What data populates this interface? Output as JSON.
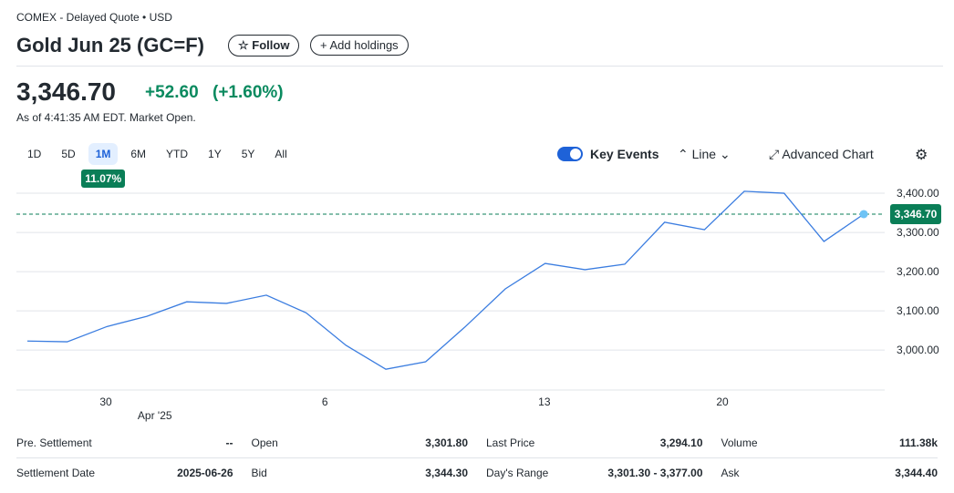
{
  "header": {
    "source": "COMEX - Delayed Quote • USD",
    "title": "Gold Jun 25 (GC=F)",
    "follow": "Follow",
    "add": "Add holdings"
  },
  "quote": {
    "price": "3,346.70",
    "change": "+52.60",
    "change_pct": "(+1.60%)",
    "as_of": "As of 4:41:35 AM EDT. Market Open."
  },
  "ranges": {
    "items": [
      "1D",
      "5D",
      "1M",
      "6M",
      "YTD",
      "1Y",
      "5Y",
      "All"
    ],
    "selected": 2,
    "badge": "11.07%"
  },
  "controls": {
    "key_events": "Key Events",
    "line": "Line",
    "advanced": "Advanced Chart"
  },
  "chart_data": {
    "type": "line",
    "categories": [
      null,
      null,
      null,
      null,
      null,
      null,
      null,
      null,
      null,
      null,
      null,
      null,
      null,
      null,
      null,
      null,
      null,
      null,
      null,
      null,
      null,
      null
    ],
    "xticks": [
      {
        "value": 1.97,
        "label": "30"
      },
      {
        "value": 7.47,
        "label": "6"
      },
      {
        "value": 12.98,
        "label": "13"
      },
      {
        "value": 17.45,
        "label": "20"
      }
    ],
    "xticks_secondary": [
      {
        "value": 3.2,
        "label": "Apr '25"
      }
    ],
    "series": [
      {
        "color": "#3b7de0",
        "values": [
          3023,
          3021,
          3060,
          3086,
          3123,
          3119,
          3140,
          3095,
          3012,
          2951,
          2970,
          3060,
          3156,
          3221,
          3205,
          3219,
          3326,
          3307,
          3405,
          3400,
          3277,
          3346.7
        ]
      }
    ],
    "ylim": [
      2898,
      3428
    ],
    "yticks": [
      {
        "value": 3000,
        "label": "3,000.00"
      },
      {
        "value": 3100,
        "label": "3,100.00"
      },
      {
        "value": 3200,
        "label": "3,200.00"
      },
      {
        "value": 3300,
        "label": "3,300.00"
      },
      {
        "value": 3400,
        "label": "3,400.00"
      }
    ],
    "last": {
      "value": 3346.7,
      "label": "3,346.70"
    },
    "grid": true
  },
  "stats": {
    "rows": [
      [
        [
          "Pre. Settlement",
          "--"
        ],
        [
          "Open",
          "3,301.80"
        ],
        [
          "Last Price",
          "3,294.10"
        ],
        [
          "Volume",
          "111.38k"
        ]
      ],
      [
        [
          "Settlement Date",
          "2025-06-26"
        ],
        [
          "Bid",
          "3,344.30"
        ],
        [
          "Day's Range",
          "3,301.30 - 3,377.00"
        ],
        [
          "Ask",
          "3,344.40"
        ]
      ]
    ]
  }
}
